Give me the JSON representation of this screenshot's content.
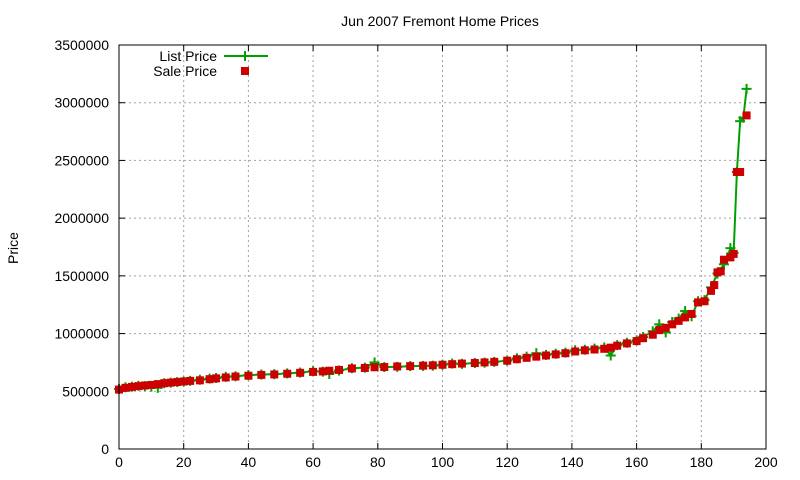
{
  "chart_data": {
    "type": "line",
    "title": "Jun 2007 Fremont Home Prices",
    "xlabel": "",
    "ylabel": "Price",
    "xlim": [
      0,
      200
    ],
    "ylim": [
      0,
      3500000
    ],
    "x_ticks": [
      "0",
      "20",
      "40",
      "60",
      "80",
      "100",
      "120",
      "140",
      "160",
      "180",
      "200"
    ],
    "y_ticks": [
      "0",
      "500000",
      "1000000",
      "1500000",
      "2000000",
      "2500000",
      "3000000",
      "3500000"
    ],
    "grid": true,
    "legend_position": "top-left",
    "series": [
      {
        "name": "List Price",
        "style": "line+plus",
        "color": "#00a000",
        "points": [
          [
            0,
            520000
          ],
          [
            2,
            535000
          ],
          [
            4,
            540000
          ],
          [
            6,
            548000
          ],
          [
            8,
            545000
          ],
          [
            10,
            540000
          ],
          [
            12,
            530000
          ],
          [
            14,
            570000
          ],
          [
            16,
            575000
          ],
          [
            18,
            580000
          ],
          [
            20,
            585000
          ],
          [
            22,
            590000
          ],
          [
            25,
            600000
          ],
          [
            28,
            610000
          ],
          [
            30,
            615000
          ],
          [
            33,
            625000
          ],
          [
            36,
            630000
          ],
          [
            40,
            640000
          ],
          [
            44,
            645000
          ],
          [
            48,
            648000
          ],
          [
            52,
            655000
          ],
          [
            56,
            662000
          ],
          [
            60,
            675000
          ],
          [
            63,
            670000
          ],
          [
            65,
            650000
          ],
          [
            68,
            680000
          ],
          [
            72,
            700000
          ],
          [
            76,
            705000
          ],
          [
            79,
            750000
          ],
          [
            82,
            710000
          ],
          [
            86,
            712000
          ],
          [
            90,
            718000
          ],
          [
            94,
            720000
          ],
          [
            97,
            722000
          ],
          [
            100,
            730000
          ],
          [
            103,
            740000
          ],
          [
            106,
            738000
          ],
          [
            110,
            745000
          ],
          [
            113,
            748000
          ],
          [
            116,
            755000
          ],
          [
            120,
            765000
          ],
          [
            123,
            785000
          ],
          [
            126,
            800000
          ],
          [
            129,
            830000
          ],
          [
            132,
            815000
          ],
          [
            135,
            825000
          ],
          [
            138,
            835000
          ],
          [
            141,
            855000
          ],
          [
            144,
            860000
          ],
          [
            147,
            870000
          ],
          [
            150,
            880000
          ],
          [
            152,
            810000
          ],
          [
            154,
            900000
          ],
          [
            157,
            920000
          ],
          [
            160,
            940000
          ],
          [
            162,
            970000
          ],
          [
            165,
            1020000
          ],
          [
            167,
            1080000
          ],
          [
            169,
            1010000
          ],
          [
            171,
            1100000
          ],
          [
            173,
            1130000
          ],
          [
            175,
            1195000
          ],
          [
            177,
            1150000
          ],
          [
            179,
            1280000
          ],
          [
            181,
            1290000
          ],
          [
            183,
            1400000
          ],
          [
            185,
            1520000
          ],
          [
            187,
            1600000
          ],
          [
            188,
            1660000
          ],
          [
            189,
            1740000
          ],
          [
            190,
            1700000
          ],
          [
            191,
            2400000
          ],
          [
            192,
            2840000
          ],
          [
            193,
            2870000
          ],
          [
            194,
            3120000
          ]
        ]
      },
      {
        "name": "Sale Price",
        "style": "filled-square",
        "color": "#cc0000",
        "points": [
          [
            0,
            515000
          ],
          [
            2,
            530000
          ],
          [
            4,
            538000
          ],
          [
            6,
            545000
          ],
          [
            8,
            550000
          ],
          [
            10,
            555000
          ],
          [
            12,
            562000
          ],
          [
            14,
            570000
          ],
          [
            16,
            575000
          ],
          [
            18,
            580000
          ],
          [
            20,
            585000
          ],
          [
            22,
            590000
          ],
          [
            25,
            595000
          ],
          [
            28,
            605000
          ],
          [
            30,
            612000
          ],
          [
            33,
            620000
          ],
          [
            36,
            628000
          ],
          [
            40,
            635000
          ],
          [
            44,
            642000
          ],
          [
            48,
            646000
          ],
          [
            52,
            652000
          ],
          [
            56,
            660000
          ],
          [
            60,
            668000
          ],
          [
            63,
            672000
          ],
          [
            65,
            678000
          ],
          [
            68,
            685000
          ],
          [
            72,
            698000
          ],
          [
            76,
            702000
          ],
          [
            79,
            708000
          ],
          [
            82,
            710000
          ],
          [
            86,
            715000
          ],
          [
            90,
            718000
          ],
          [
            94,
            722000
          ],
          [
            97,
            725000
          ],
          [
            100,
            730000
          ],
          [
            103,
            735000
          ],
          [
            106,
            740000
          ],
          [
            110,
            745000
          ],
          [
            113,
            750000
          ],
          [
            116,
            755000
          ],
          [
            120,
            765000
          ],
          [
            123,
            778000
          ],
          [
            126,
            790000
          ],
          [
            129,
            800000
          ],
          [
            132,
            810000
          ],
          [
            135,
            820000
          ],
          [
            138,
            830000
          ],
          [
            141,
            845000
          ],
          [
            144,
            855000
          ],
          [
            147,
            862000
          ],
          [
            150,
            868000
          ],
          [
            152,
            878000
          ],
          [
            154,
            895000
          ],
          [
            157,
            915000
          ],
          [
            160,
            935000
          ],
          [
            162,
            960000
          ],
          [
            165,
            990000
          ],
          [
            167,
            1030000
          ],
          [
            169,
            1050000
          ],
          [
            171,
            1080000
          ],
          [
            173,
            1110000
          ],
          [
            175,
            1140000
          ],
          [
            177,
            1170000
          ],
          [
            179,
            1270000
          ],
          [
            181,
            1280000
          ],
          [
            183,
            1370000
          ],
          [
            184,
            1420000
          ],
          [
            185,
            1530000
          ],
          [
            186,
            1540000
          ],
          [
            187,
            1640000
          ],
          [
            189,
            1660000
          ],
          [
            190,
            1690000
          ],
          [
            191,
            2400000
          ],
          [
            192,
            2400000
          ],
          [
            194,
            2890000
          ]
        ]
      }
    ]
  }
}
